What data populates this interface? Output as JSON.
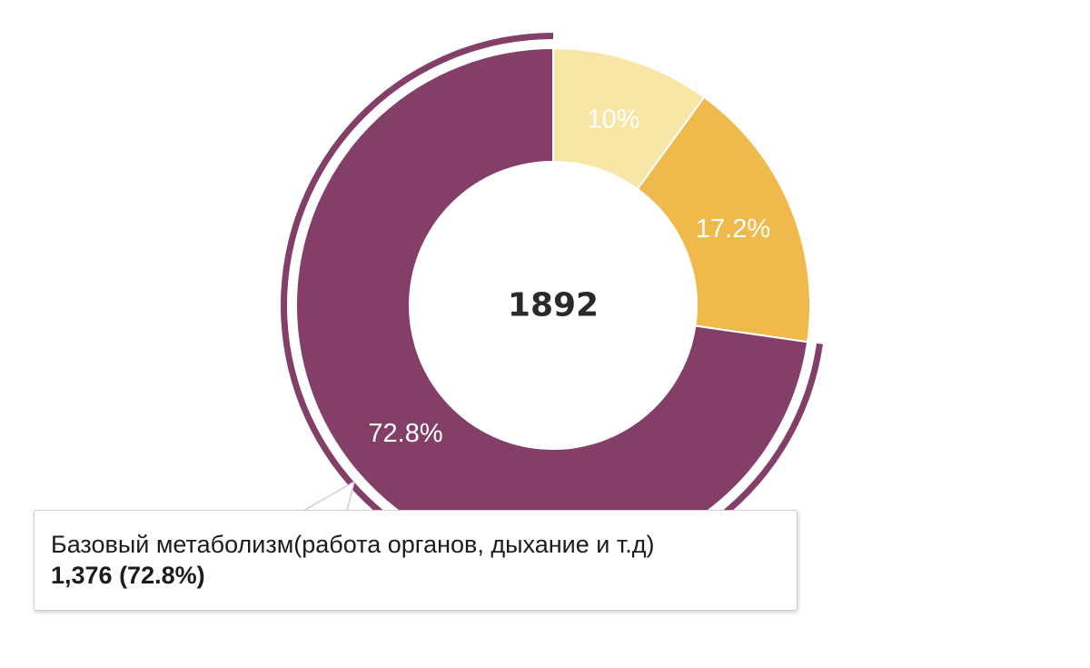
{
  "chart_data": {
    "type": "pie",
    "variant": "donut",
    "total": 1892,
    "center_label": "1892",
    "slices": [
      {
        "name": "",
        "value": 189,
        "percent_label": "10%",
        "color": "#f8e6a7"
      },
      {
        "name": "",
        "value": 327,
        "percent_label": "17.2%",
        "color": "#efba4b"
      },
      {
        "name": "Базовый метаболизм(работа органов, дыхание и т.д)",
        "value": 1376,
        "percent_label": "72.8%",
        "color": "#843f69",
        "highlighted": true
      }
    ],
    "legend": "none"
  },
  "tooltip": {
    "name": "Базовый метаболизм(работа органов, дыхание и т.д)",
    "value_text": "1,376 (72.8%)"
  }
}
